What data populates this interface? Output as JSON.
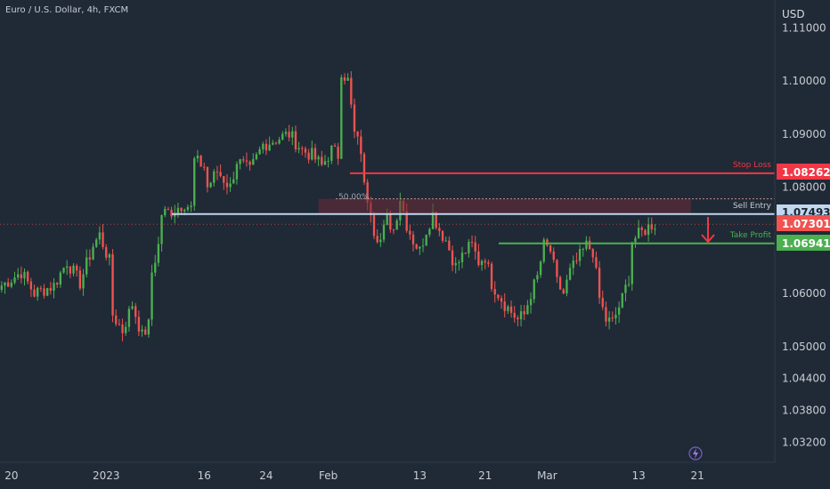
{
  "header": {
    "symbol_title": "Euro / U.S. Dollar, 4h, FXCM",
    "currency": "USD"
  },
  "colors": {
    "background": "#1f2a36",
    "up_candle": "#26a69a",
    "up_candle_bright": "#4caf50",
    "down_candle": "#ef5350",
    "stop_loss": "#f23645",
    "sell_entry": "#c2d6f0",
    "take_profit": "#4caf50",
    "current_price": "#f05350",
    "zone_fill": "#6b2a36"
  },
  "chart_data": {
    "type": "candlestick",
    "title": "Euro / U.S. Dollar, 4h, FXCM",
    "ylabel": "USD",
    "ylim": [
      1.026,
      1.117
    ],
    "y_ticks": [
      "1.11000",
      "1.10000",
      "1.09000",
      "1.08000",
      "1.06000",
      "1.05000",
      "1.04400",
      "1.03800",
      "1.03200"
    ],
    "y_tick_values": [
      1.11,
      1.1,
      1.09,
      1.08,
      1.06,
      1.05,
      1.044,
      1.038,
      1.032
    ],
    "x_ticks": [
      "20",
      "2023",
      "16",
      "24",
      "Feb",
      "13",
      "21",
      "Mar",
      "13",
      "21"
    ],
    "x_tick_index": [
      3,
      32,
      62,
      81,
      100,
      128,
      148,
      167,
      195,
      213
    ],
    "x_bar_count": 235,
    "price_path": [
      [
        0,
        1.0615
      ],
      [
        6,
        1.064
      ],
      [
        10,
        1.06
      ],
      [
        16,
        1.0615
      ],
      [
        20,
        1.066
      ],
      [
        24,
        1.062
      ],
      [
        28,
        1.069
      ],
      [
        30,
        1.071
      ],
      [
        33,
        1.066
      ],
      [
        34,
        1.056
      ],
      [
        37,
        1.053
      ],
      [
        40,
        1.058
      ],
      [
        43,
        1.052
      ],
      [
        45,
        1.054
      ],
      [
        46,
        1.064
      ],
      [
        48,
        1.069
      ],
      [
        49,
        1.075
      ],
      [
        52,
        1.0755
      ],
      [
        56,
        1.077
      ],
      [
        58,
        1.076
      ],
      [
        59,
        1.085
      ],
      [
        62,
        1.084
      ],
      [
        63,
        1.08
      ],
      [
        66,
        1.083
      ],
      [
        70,
        1.08
      ],
      [
        72,
        1.085
      ],
      [
        76,
        1.083
      ],
      [
        80,
        1.088
      ],
      [
        84,
        1.089
      ],
      [
        88,
        1.09
      ],
      [
        92,
        1.087
      ],
      [
        95,
        1.086
      ],
      [
        98,
        1.084
      ],
      [
        101,
        1.087
      ],
      [
        103,
        1.086
      ],
      [
        104,
        1.102
      ],
      [
        106,
        1.1
      ],
      [
        108,
        1.09
      ],
      [
        110,
        1.087
      ],
      [
        111,
        1.08
      ],
      [
        113,
        1.076
      ],
      [
        114,
        1.072
      ],
      [
        116,
        1.07
      ],
      [
        118,
        1.074
      ],
      [
        120,
        1.072
      ],
      [
        122,
        1.078
      ],
      [
        124,
        1.073
      ],
      [
        126,
        1.07
      ],
      [
        128,
        1.068
      ],
      [
        130,
        1.072
      ],
      [
        132,
        1.075
      ],
      [
        134,
        1.072
      ],
      [
        136,
        1.07
      ],
      [
        139,
        1.065
      ],
      [
        142,
        1.068
      ],
      [
        144,
        1.069
      ],
      [
        146,
        1.066
      ],
      [
        148,
        1.067
      ],
      [
        150,
        1.062
      ],
      [
        154,
        1.058
      ],
      [
        158,
        1.055
      ],
      [
        160,
        1.056
      ],
      [
        162,
        1.06
      ],
      [
        164,
        1.063
      ],
      [
        166,
        1.069
      ],
      [
        168,
        1.068
      ],
      [
        170,
        1.062
      ],
      [
        172,
        1.06
      ],
      [
        174,
        1.064
      ],
      [
        177,
        1.067
      ],
      [
        179,
        1.069
      ],
      [
        181,
        1.068
      ],
      [
        183,
        1.059
      ],
      [
        185,
        1.055
      ],
      [
        187,
        1.0545
      ],
      [
        190,
        1.059
      ],
      [
        192,
        1.063
      ],
      [
        193,
        1.07
      ],
      [
        195,
        1.071
      ],
      [
        197,
        1.072
      ],
      [
        199,
        1.073
      ],
      [
        200,
        1.073
      ]
    ],
    "levels": [
      {
        "name": "Stop Loss",
        "price": 1.08262,
        "label": "1.08262",
        "color": "#f23645"
      },
      {
        "name": "Sell Entry",
        "price": 1.07493,
        "label": "1.07493",
        "color": "#c2d6f0"
      },
      {
        "name": "Take Profit",
        "price": 1.06941,
        "label": "1.06941",
        "color": "#4caf50"
      }
    ],
    "current_price": {
      "price": 1.07301,
      "label": "1.07301"
    },
    "fib_50": {
      "label": "50.00%",
      "price": 1.0778
    },
    "zone": {
      "from": 1.07493,
      "to": 1.0778,
      "start_index": 97,
      "end_index": 211
    }
  },
  "annotations": {
    "stop_loss": "Stop Loss",
    "sell_entry": "Sell Entry",
    "take_profit": "Take Profit",
    "fib": "50.00%"
  },
  "price_tags": {
    "stop_loss": "1.08262",
    "sell_entry": "1.07493",
    "current": "1.07301",
    "take_profit": "1.06941"
  },
  "bottom_icon": "lightning-icon"
}
